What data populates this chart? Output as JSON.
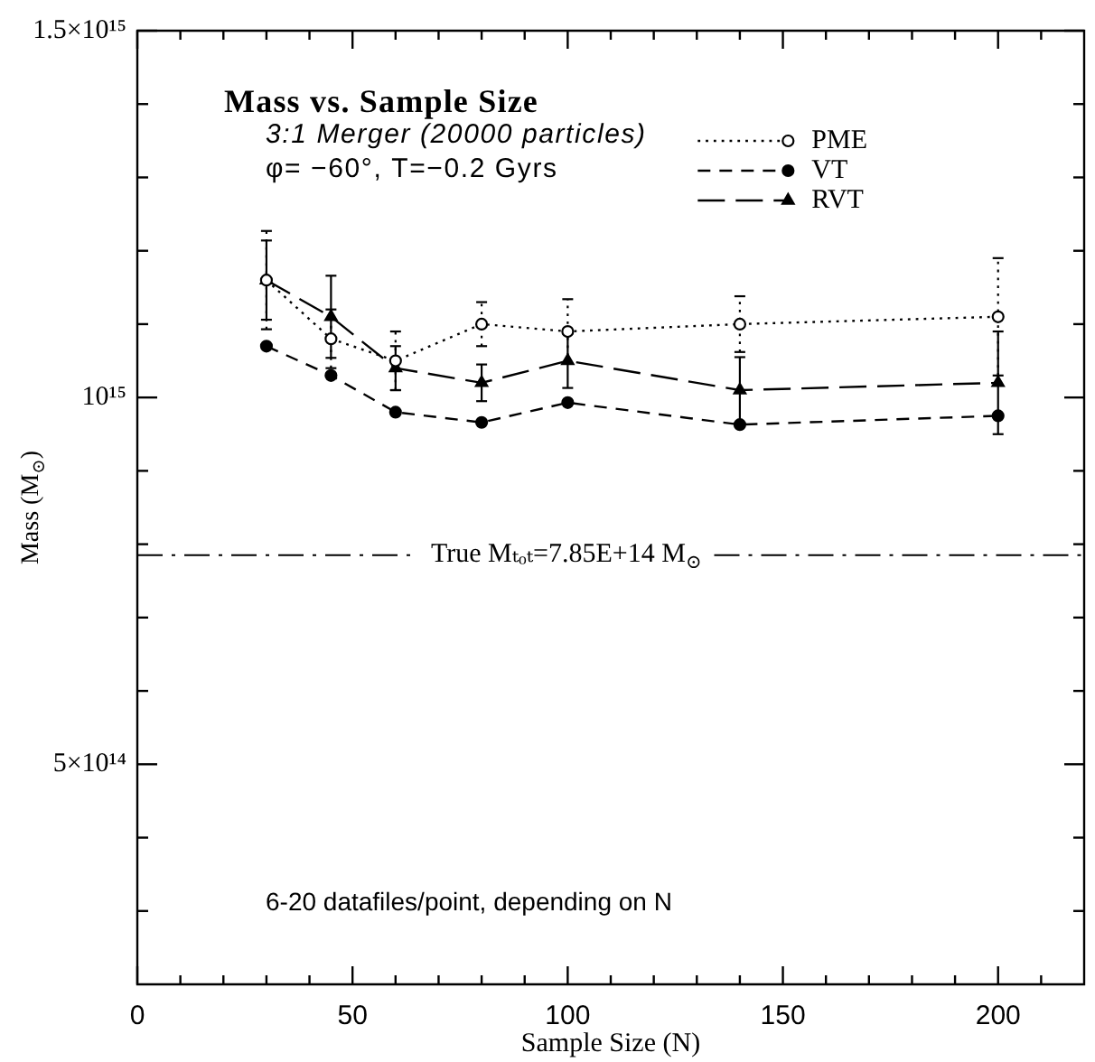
{
  "chart_data": {
    "type": "line",
    "title": "Mass vs. Sample Size",
    "subtitle": "3:1 Merger (20000 particles)",
    "annotations": [
      "φ= −60°, T=−0.2 Gyrs",
      "6-20 datafiles/point, depending on N",
      "True Mₜₒₜ=7.85E+14 M$_{⊙}$"
    ],
    "xlabel": "Sample Size (N)",
    "ylabel": "Mass (M$_{⊙}$)",
    "x": [
      30,
      45,
      60,
      80,
      100,
      140,
      200
    ],
    "series": [
      {
        "name": "PME",
        "color": "#000000",
        "line_style": "dotted",
        "marker": "circle",
        "values": [
          1160000000000000.0,
          1080000000000000.0,
          1050000000000000.0,
          1100000000000000.0,
          1090000000000000.0,
          1100000000000000.0,
          1110000000000000.0
        ],
        "errors": [
          67000000000000.0,
          40000000000000.0,
          40000000000000.0,
          30000000000000.0,
          44000000000000.0,
          38000000000000.0,
          80000000000000.0
        ]
      },
      {
        "name": "VT",
        "color": "#000000",
        "line_style": "dashed",
        "marker": "circle",
        "values": [
          1070000000000000.0,
          1030000000000000.0,
          980000000000000.0,
          966000000000000.0,
          993000000000000.0,
          963000000000000.0,
          975000000000000.0
        ]
      },
      {
        "name": "RVT",
        "color": "#000000",
        "line_style": "dashed",
        "marker": "triangle",
        "values": [
          1160000000000000.0,
          1110000000000000.0,
          1040000000000000.0,
          1020000000000000.0,
          1050000000000000.0,
          1010000000000000.0,
          1020000000000000.0
        ],
        "errors": [
          54000000000000.0,
          56000000000000.0,
          30000000000000.0,
          25000000000000.0,
          37000000000000.0,
          45000000000000.0,
          70000000000000.0
        ]
      }
    ],
    "xlim": [
      0,
      220
    ],
    "xticks": [
      0,
      {
        "value": 10,
        "label": null
      },
      {
        "value": 20,
        "label": null
      },
      {
        "value": 30,
        "label": null
      },
      {
        "value": 40,
        "label": null
      },
      50,
      {
        "value": 60,
        "label": null
      },
      {
        "value": 70,
        "label": null
      },
      {
        "value": 80,
        "label": null
      },
      {
        "value": 90,
        "label": null
      },
      100,
      {
        "value": 110,
        "label": null
      },
      {
        "value": 120,
        "label": null
      },
      {
        "value": 130,
        "label": null
      },
      {
        "value": 140,
        "label": null
      },
      150,
      {
        "value": 160,
        "label": null
      },
      {
        "value": 170,
        "label": null
      },
      {
        "value": 180,
        "label": null
      },
      {
        "value": 190,
        "label": null
      },
      200,
      {
        "value": 210,
        "label": null
      }
    ],
    "ylim": [
      200000000000000.0,
      1500000000000000.0
    ],
    "yticks": [
      {
        "value": 300000000000000.0,
        "label": null
      },
      {
        "value": 400000000000000.0,
        "label": null
      },
      {
        "value": 500000000000000.0,
        "label": "5×10¹⁴"
      },
      {
        "value": 600000000000000.0,
        "label": null
      },
      {
        "value": 700000000000000.0,
        "label": null
      },
      {
        "value": 800000000000000.0,
        "label": null
      },
      {
        "value": 900000000000000.0,
        "label": null
      },
      {
        "value": 1000000000000000.0,
        "label": "10¹⁵"
      },
      {
        "value": 1100000000000000.0,
        "label": null
      },
      {
        "value": 1200000000000000.0,
        "label": null
      },
      {
        "value": 1300000000000000.0,
        "label": null
      },
      {
        "value": 1400000000000000.0,
        "label": null
      },
      {
        "value": 1500000000000000.0,
        "label": "1.5×10¹⁵"
      }
    ],
    "ref_lines": [
      {
        "axis": "y",
        "value": 785000000000000.0,
        "line_style": "dashdot"
      }
    ],
    "legend": "top right"
  }
}
